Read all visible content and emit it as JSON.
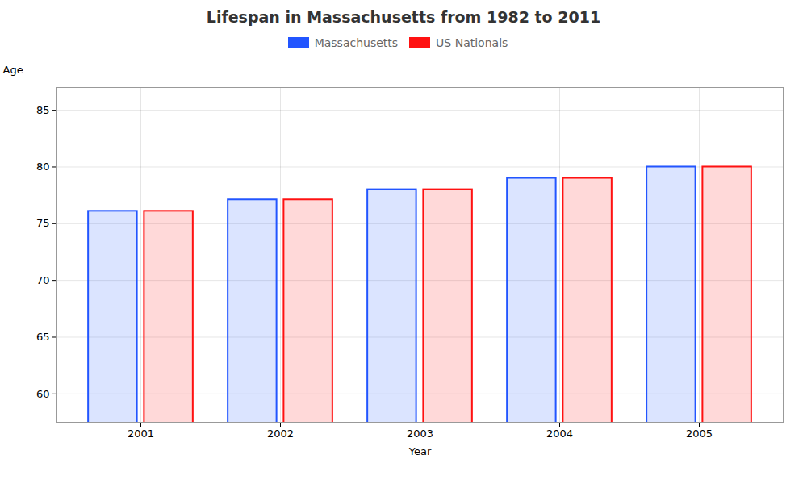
{
  "chart_data": {
    "type": "bar",
    "title": "Lifespan in Massachusetts from 1982 to 2011",
    "xlabel": "Year",
    "ylabel": "Age",
    "categories": [
      "2001",
      "2002",
      "2003",
      "2004",
      "2005"
    ],
    "series": [
      {
        "name": "Massachusetts",
        "color": "#2255ff",
        "values": [
          76.1,
          77.1,
          78.0,
          79.0,
          80.0
        ]
      },
      {
        "name": "US Nationals",
        "color": "#ff1111",
        "values": [
          76.1,
          77.1,
          78.0,
          79.0,
          80.0
        ]
      }
    ],
    "ylim": [
      57.5,
      87
    ],
    "yticks": [
      60,
      65,
      70,
      75,
      80,
      85
    ],
    "grid": true,
    "legend": "top"
  }
}
